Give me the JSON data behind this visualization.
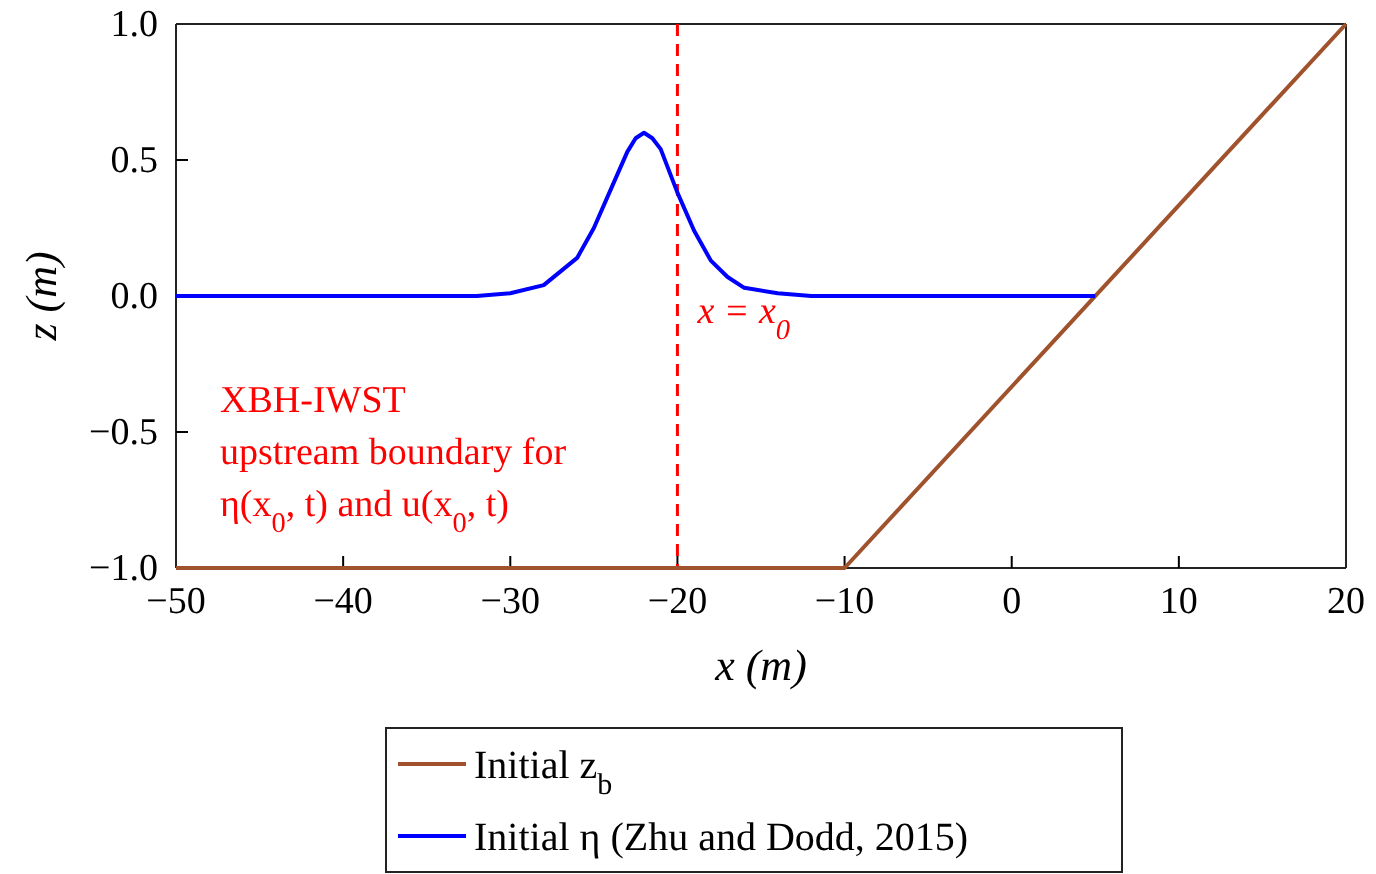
{
  "chart_data": {
    "type": "line",
    "xlabel": "x (m)",
    "ylabel": "z (m)",
    "xlim": [
      -50,
      20
    ],
    "ylim": [
      -1,
      1
    ],
    "xticks": [
      {
        "value": -50,
        "label": "−50"
      },
      {
        "value": -40,
        "label": "−40"
      },
      {
        "value": -30,
        "label": "−30"
      },
      {
        "value": -20,
        "label": "−20"
      },
      {
        "value": -10,
        "label": "−10"
      },
      0,
      10,
      20
    ],
    "yticks": [
      {
        "value": -1,
        "label": "−1.0"
      },
      {
        "value": -0.5,
        "label": "−0.5"
      },
      {
        "value": 0,
        "label": "0.0"
      },
      {
        "value": 0.5,
        "label": "0.5"
      },
      {
        "value": 1,
        "label": "1.0"
      }
    ],
    "series": [
      {
        "name": "Initial  z$_{b}$",
        "color": "#a0522d",
        "x": [
          -50,
          -10,
          20
        ],
        "values": [
          -1,
          -1,
          1
        ]
      },
      {
        "name": "Initial  η (Zhu and Dodd, 2015)",
        "color": "#0000ff",
        "x": [
          -50,
          -32,
          -30,
          -28,
          -26,
          -25,
          -24,
          -23,
          -22.5,
          -22,
          -21.5,
          -21,
          -20,
          -19,
          -18,
          -17,
          -16,
          -14,
          -12,
          5
        ],
        "values": [
          0,
          0,
          0.01,
          0.04,
          0.14,
          0.25,
          0.39,
          0.53,
          0.58,
          0.6,
          0.58,
          0.54,
          0.38,
          0.24,
          0.13,
          0.07,
          0.03,
          0.01,
          0,
          0
        ]
      }
    ],
    "ref_lines": [
      {
        "axis": "x",
        "value": -20,
        "color": "#ff0000",
        "line_style": "dashed"
      }
    ],
    "annotations": [
      {
        "text": "x = x$_{0}$",
        "x": -20,
        "y": -0.1
      },
      "XBH-IWST",
      "upstream boundary for",
      "η(x$_{0}$, t) and u(x$_{0}$, t)"
    ],
    "legend": "bottom",
    "grid": false,
    "line_style": "solid",
    "marker": "none"
  }
}
